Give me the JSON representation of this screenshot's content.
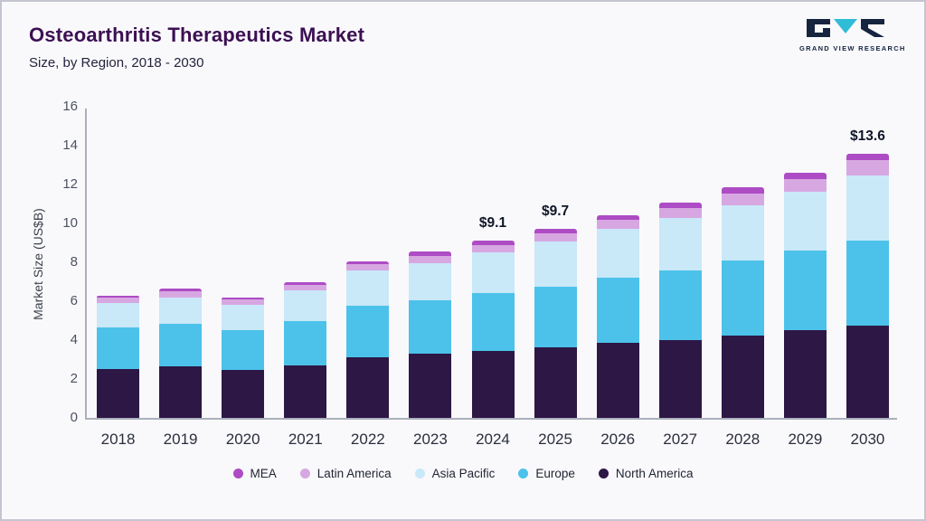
{
  "header": {
    "title": "Osteoarthritis Therapeutics Market",
    "subtitle": "Size, by Region, 2018 - 2030",
    "logo_text": "GRAND VIEW RESEARCH"
  },
  "chart_data": {
    "type": "bar",
    "stacked": true,
    "title": "Osteoarthritis Therapeutics Market Size, by Region, 2018 - 2030",
    "ylabel": "Market Size (US$B)",
    "ylim": [
      0,
      16
    ],
    "yticks": [
      0,
      2,
      4,
      6,
      8,
      10,
      12,
      14,
      16
    ],
    "grid": false,
    "legend_position": "bottom",
    "categories": [
      "2018",
      "2019",
      "2020",
      "2021",
      "2022",
      "2023",
      "2024",
      "2025",
      "2026",
      "2027",
      "2028",
      "2029",
      "2030"
    ],
    "series": [
      {
        "name": "North America",
        "color": "#2d1745",
        "values": [
          2.5,
          2.65,
          2.45,
          2.7,
          3.1,
          3.3,
          3.45,
          3.65,
          3.85,
          4.0,
          4.25,
          4.5,
          4.75
        ]
      },
      {
        "name": "Europe",
        "color": "#4cc2ea",
        "values": [
          2.15,
          2.2,
          2.05,
          2.3,
          2.65,
          2.75,
          2.95,
          3.1,
          3.35,
          3.6,
          3.85,
          4.1,
          4.35
        ]
      },
      {
        "name": "Asia Pacific",
        "color": "#c9e8f8",
        "values": [
          1.25,
          1.35,
          1.3,
          1.55,
          1.85,
          1.9,
          2.1,
          2.3,
          2.5,
          2.7,
          2.85,
          3.05,
          3.35
        ]
      },
      {
        "name": "Latin America",
        "color": "#d7a7e2",
        "values": [
          0.3,
          0.3,
          0.3,
          0.3,
          0.3,
          0.4,
          0.4,
          0.45,
          0.5,
          0.5,
          0.6,
          0.65,
          0.8
        ]
      },
      {
        "name": "MEA",
        "color": "#ad4cc4",
        "values": [
          0.1,
          0.15,
          0.1,
          0.15,
          0.15,
          0.2,
          0.2,
          0.2,
          0.2,
          0.25,
          0.3,
          0.3,
          0.35
        ]
      }
    ],
    "legend_order": [
      "MEA",
      "Latin America",
      "Asia Pacific",
      "Europe",
      "North America"
    ],
    "annotations": [
      {
        "category": "2024",
        "text": "$9.1"
      },
      {
        "category": "2025",
        "text": "$9.7"
      },
      {
        "category": "2030",
        "text": "$13.6"
      }
    ]
  }
}
